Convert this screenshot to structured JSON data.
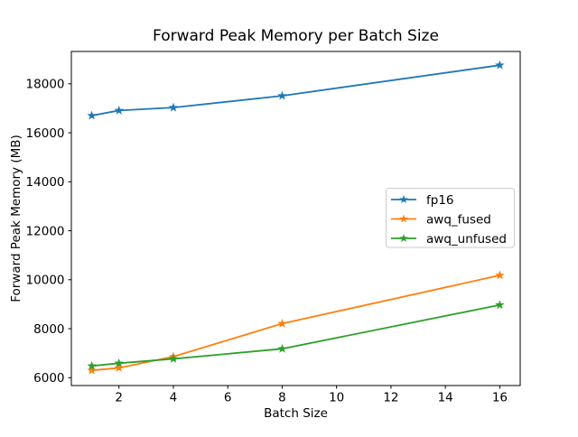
{
  "chart_data": {
    "type": "line",
    "title": "Forward Peak Memory per Batch Size",
    "xlabel": "Batch Size",
    "ylabel": "Forward Peak Memory (MB)",
    "x": [
      1,
      2,
      4,
      8,
      16
    ],
    "series": [
      {
        "name": "fp16",
        "color": "#1f77b4",
        "values": [
          16700,
          16910,
          17030,
          17510,
          18760
        ]
      },
      {
        "name": "awq_fused",
        "color": "#ff7f0e",
        "values": [
          6300,
          6400,
          6860,
          8210,
          10180
        ]
      },
      {
        "name": "awq_unfused",
        "color": "#2ca02c",
        "values": [
          6480,
          6590,
          6770,
          7180,
          8970
        ]
      }
    ],
    "marker": "star",
    "line_width_pt": 1.5,
    "xlim": [
      0.25,
      16.75
    ],
    "ylim": [
      5680,
      19320
    ],
    "xticks": [
      2,
      4,
      6,
      8,
      10,
      12,
      14,
      16
    ],
    "yticks": [
      6000,
      8000,
      10000,
      12000,
      14000,
      16000,
      18000
    ],
    "grid": false,
    "legend_position": "center right",
    "legend_border_color": "#cccccc",
    "axes_background": "#ffffff",
    "spine_color": "#000000"
  }
}
